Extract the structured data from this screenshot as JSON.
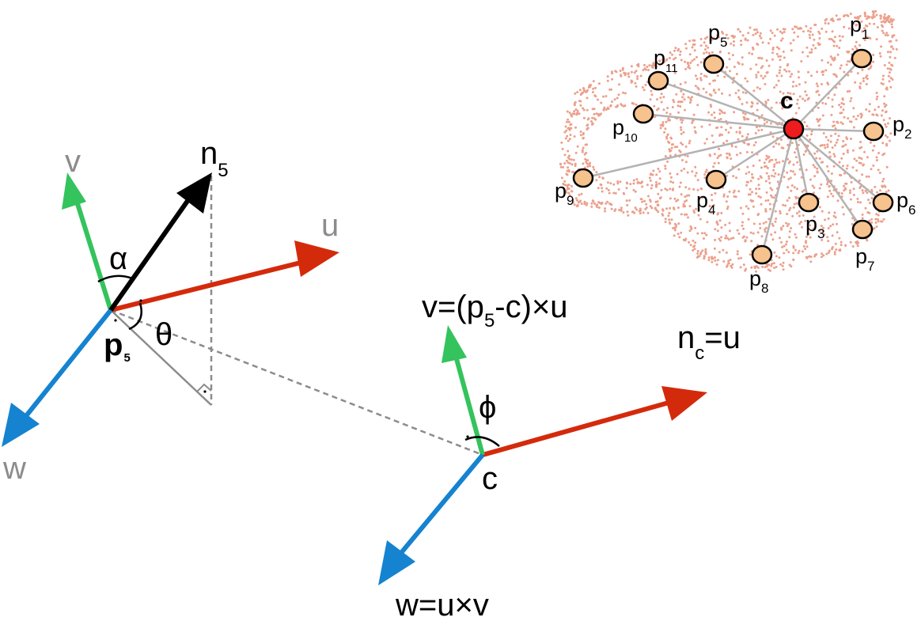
{
  "colors": {
    "u_axis": "#d42a0c",
    "v_axis": "#34c35c",
    "w_axis": "#1583d0",
    "normal": "#000000",
    "dashed": "#8c8c8c",
    "gray_label": "#8c8c8c",
    "cloud_dot": "#eba08c",
    "neighbor_fill": "#f6c28d",
    "center_fill": "#ee1c1c",
    "connector": "#b3b3b3"
  },
  "labels": {
    "v_left": "v",
    "u_left": "u",
    "w_left": "w",
    "n5_base": "n",
    "n5_sub": "5",
    "alpha": "α",
    "theta": "θ",
    "p5_base": "p",
    "p5_sub": "5",
    "v_formula_a": "v=(p",
    "v_formula_sub": "5",
    "v_formula_b": "-c)×u",
    "nc_base": "n",
    "nc_sub": "c",
    "nc_rest": "=u",
    "phi": "ϕ",
    "c_frame": "c",
    "w_formula": "w=u×v",
    "c_cloud": "c"
  },
  "neighbors": [
    {
      "base": "p",
      "sub": "1"
    },
    {
      "base": "p",
      "sub": "2"
    },
    {
      "base": "p",
      "sub": "3"
    },
    {
      "base": "p",
      "sub": "4"
    },
    {
      "base": "p",
      "sub": "5"
    },
    {
      "base": "p",
      "sub": "6"
    },
    {
      "base": "p",
      "sub": "7"
    },
    {
      "base": "p",
      "sub": "8"
    },
    {
      "base": "p",
      "sub": "9"
    },
    {
      "base": "p",
      "sub": "10"
    },
    {
      "base": "p",
      "sub": "11"
    }
  ]
}
